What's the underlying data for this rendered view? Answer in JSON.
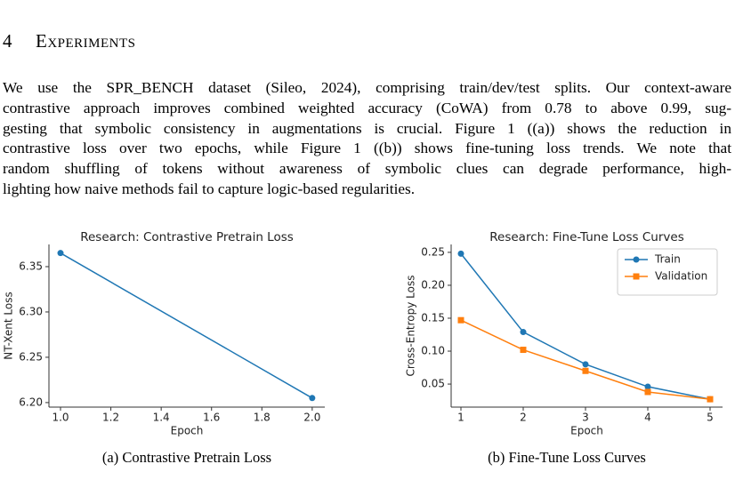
{
  "section": {
    "number": "4",
    "title": "Experiments"
  },
  "paragraph": {
    "lines": [
      "We use the SPR_BENCH dataset (Sileo, 2024), comprising train/dev/test splits. Our context-aware",
      "contrastive approach improves combined weighted accuracy (CoWA) from 0.78 to above 0.99, sug-",
      "gesting that symbolic consistency in augmentations is crucial. Figure 1 ((a)) shows the reduction in",
      "contrastive loss over two epochs, while Figure 1 ((b)) shows fine-tuning loss trends. We note that",
      "random shuffling of tokens without awareness of symbolic clues can degrade performance, high-",
      "lighting how naive methods fail to capture logic-based regularities."
    ]
  },
  "chart_data": [
    {
      "type": "line",
      "title": "Research: Contrastive Pretrain Loss",
      "caption": "(a)  Contrastive Pretrain Loss",
      "xlabel": "Epoch",
      "ylabel": "NT-Xent Loss",
      "x": [
        1,
        2
      ],
      "values": [
        6.365,
        6.205
      ],
      "color": "#1f77b4",
      "xlim": [
        0.954,
        2.05
      ],
      "ylim": [
        6.195,
        6.3745
      ],
      "xticks": [
        {
          "value": 1,
          "label": "1.0"
        },
        1.2,
        1.4,
        1.6,
        1.8,
        {
          "value": 2,
          "label": "2.0"
        }
      ],
      "yticks": [
        {
          "value": 6.2,
          "label": "6.20"
        },
        6.25,
        {
          "value": 6.3,
          "label": "6.30"
        },
        6.35
      ]
    },
    {
      "type": "line",
      "title": "Research: Fine-Tune Loss Curves",
      "caption": "(b)  Fine-Tune Loss Curves",
      "xlabel": "Epoch",
      "ylabel": "Cross-Entropy Loss",
      "x": [
        1,
        2,
        3,
        4,
        5
      ],
      "series": [
        {
          "name": "Train",
          "color": "#1f77b4",
          "marker": "circle",
          "values": [
            0.248,
            0.129,
            0.08,
            0.046,
            0.027
          ]
        },
        {
          "name": "Validation",
          "color": "#ff7f0e",
          "marker": "square",
          "values": [
            0.147,
            0.102,
            0.07,
            0.038,
            0.027
          ]
        }
      ],
      "legend": "upper right",
      "xlim": [
        0.843,
        5.2
      ],
      "ylim": [
        0.015,
        0.262
      ],
      "xticks": [
        1,
        2,
        3,
        4,
        5
      ],
      "yticks": [
        0.05,
        {
          "value": 0.1,
          "label": "0.10"
        },
        0.15,
        {
          "value": 0.2,
          "label": "0.20"
        },
        0.25
      ]
    }
  ]
}
